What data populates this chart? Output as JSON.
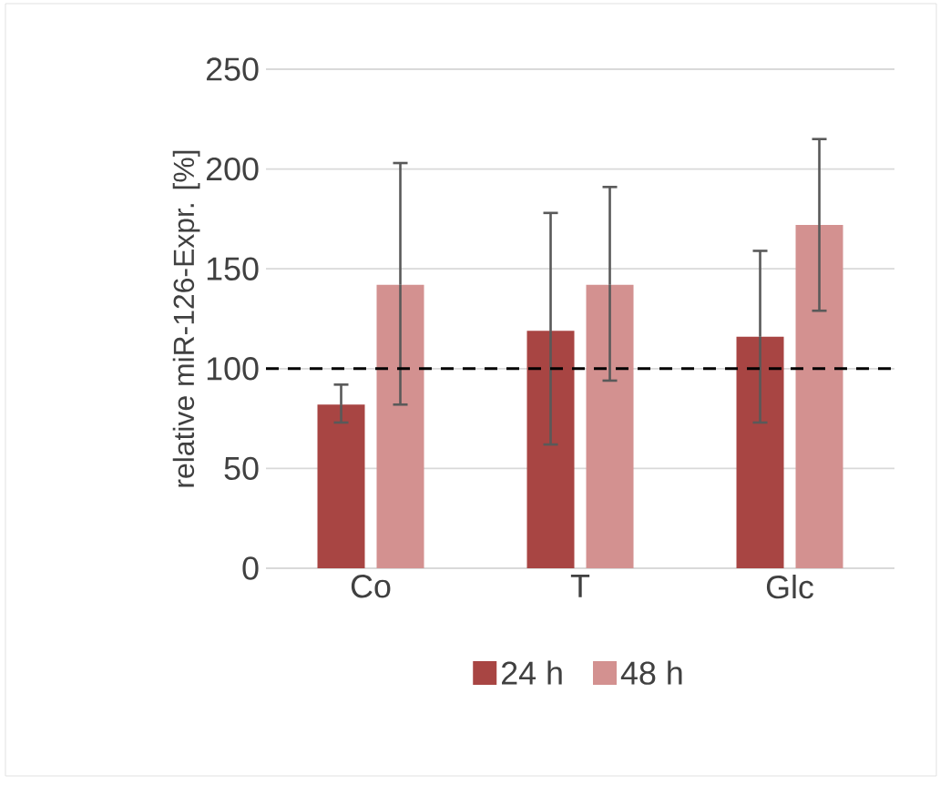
{
  "chart_data": {
    "type": "bar",
    "ylabel": "relative miR-126-Expr. [%]",
    "categories": [
      "Co",
      "T",
      "Glc"
    ],
    "series": [
      {
        "name": "24 h",
        "color": "#a84543",
        "values": [
          82,
          119,
          116
        ],
        "errors": [
          [
            73,
            92
          ],
          [
            62,
            178
          ],
          [
            73,
            159
          ]
        ]
      },
      {
        "name": "48 h",
        "color": "#d39190",
        "values": [
          142,
          142,
          172
        ],
        "errors": [
          [
            82,
            203
          ],
          [
            94,
            191
          ],
          [
            129,
            215
          ]
        ]
      }
    ],
    "ylim": [
      0,
      250
    ],
    "yticks": [
      0,
      50,
      100,
      150,
      200,
      250
    ],
    "grid": "y",
    "legend": "bottom",
    "ref_lines": [
      {
        "axis": "y",
        "value": 100,
        "color": "#000000",
        "line_style": "dashed"
      }
    ]
  }
}
